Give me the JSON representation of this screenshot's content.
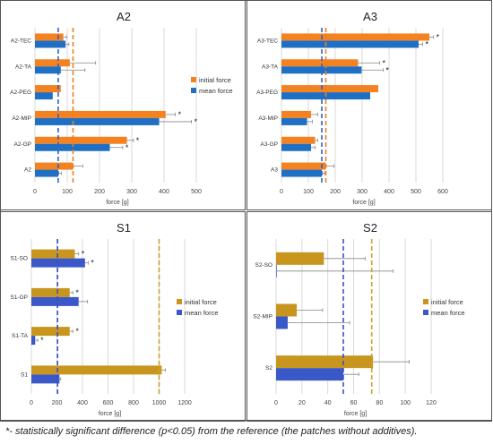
{
  "colors": {
    "initial": "#f58220",
    "mean": "#1f6fc5",
    "s_initial": "#c8961e",
    "s_mean": "#3b58c9",
    "ref_initial_line": "#e8801f",
    "ref_mean_line": "#2f62c8",
    "s_ref_initial_line": "#c9a227",
    "s_ref_mean_line": "#3c4fc6",
    "grid": "#d9d9d9",
    "error": "#888888"
  },
  "footnote": "*- statistically significant difference (p<0.05) from the reference (the patches without additives).",
  "chart_data": [
    {
      "id": "A2",
      "type": "bar",
      "title": "A2",
      "xlabel": "force [g]",
      "xlim": [
        0,
        600
      ],
      "ticks": [
        "0",
        "100",
        "200",
        "300",
        "400",
        "500"
      ],
      "categories": [
        "A2-TEC",
        "A2-TA",
        "A2-PEG",
        "A2-MIP",
        "A2-GP",
        "A2"
      ],
      "series": [
        {
          "name": "initial force",
          "values": [
            88,
            108,
            80,
            405,
            285,
            118
          ],
          "errors": [
            10,
            80,
            0,
            30,
            20,
            30
          ],
          "sig": [
            false,
            false,
            false,
            true,
            true,
            false
          ]
        },
        {
          "name": "mean force",
          "values": [
            95,
            80,
            55,
            385,
            232,
            72
          ],
          "errors": [
            10,
            75,
            0,
            100,
            40,
            10
          ],
          "sig": [
            false,
            false,
            false,
            true,
            true,
            false
          ]
        }
      ],
      "ref_lines": {
        "initial": 118,
        "mean": 72
      },
      "legend_position": "right",
      "grid": true
    },
    {
      "id": "A3",
      "type": "bar",
      "title": "A3",
      "xlabel": "force [g]",
      "xlim": [
        0,
        600
      ],
      "ticks": [
        "0",
        "100",
        "200",
        "300",
        "400",
        "500",
        "600"
      ],
      "categories": [
        "A3-TEC",
        "A3-TA",
        "A3-PEG",
        "A3-MIP",
        "A3-GP",
        "A3"
      ],
      "series": [
        {
          "name": "initial force",
          "values": [
            550,
            285,
            360,
            110,
            125,
            165
          ],
          "errors": [
            15,
            80,
            0,
            25,
            10,
            30
          ],
          "sig": [
            true,
            true,
            false,
            false,
            false,
            false
          ]
        },
        {
          "name": "mean force",
          "values": [
            510,
            298,
            330,
            95,
            110,
            150
          ],
          "errors": [
            15,
            80,
            0,
            20,
            15,
            10
          ],
          "sig": [
            true,
            true,
            false,
            false,
            false,
            false
          ]
        }
      ],
      "ref_lines": {
        "initial": 165,
        "mean": 150
      },
      "legend_position": "none",
      "grid": true
    },
    {
      "id": "S1",
      "type": "bar",
      "title": "S1",
      "xlabel": "force [g]",
      "xlim": [
        0,
        1300
      ],
      "ticks": [
        "0",
        "200",
        "400",
        "600",
        "800",
        "1000",
        "1200"
      ],
      "categories": [
        "S1-SO",
        "S1-GP",
        "S1-TA",
        "S1"
      ],
      "series": [
        {
          "name": "initial force",
          "values": [
            340,
            300,
            300,
            1020
          ],
          "errors": [
            30,
            25,
            25,
            30
          ],
          "sig": [
            true,
            true,
            true,
            false
          ]
        },
        {
          "name": "mean force",
          "values": [
            420,
            370,
            30,
            220
          ],
          "errors": [
            25,
            70,
            20,
            10
          ],
          "sig": [
            true,
            false,
            true,
            false
          ]
        }
      ],
      "ref_lines": {
        "initial": 1000,
        "mean": 205
      },
      "legend_position": "right",
      "grid": true
    },
    {
      "id": "S2",
      "type": "bar",
      "title": "S2",
      "xlabel": "force [g]",
      "xlim": [
        0,
        130
      ],
      "ticks": [
        "0",
        "20",
        "40",
        "60",
        "80",
        "100",
        "120"
      ],
      "categories": [
        "S2-SO",
        "S2-MIP",
        "S2"
      ],
      "series": [
        {
          "name": "initial force",
          "values": [
            37,
            16,
            75
          ],
          "errors": [
            32,
            20,
            28
          ],
          "sig": [
            false,
            false,
            false
          ]
        },
        {
          "name": "mean force",
          "values": [
            0.5,
            9,
            52
          ],
          "errors": [
            90,
            48,
            12
          ],
          "sig": [
            false,
            false,
            false
          ]
        }
      ],
      "ref_lines": {
        "initial": 74,
        "mean": 52
      },
      "legend_position": "right",
      "grid": true
    }
  ]
}
